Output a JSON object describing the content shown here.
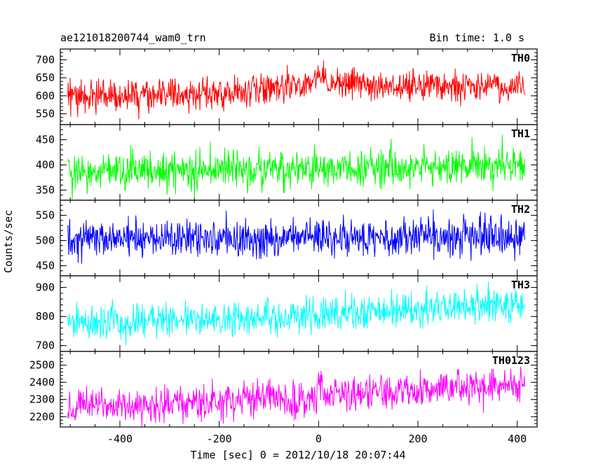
{
  "header": {
    "title": "ae121018200744_wam0_trn",
    "bin_time": "Bin time: 1.0 s"
  },
  "chart_data": {
    "type": "line",
    "title": "ae121018200744_wam0_trn",
    "subtitle": "Bin time: 1.0 s",
    "xlabel": "Time [sec] 0 = 2012/10/18 20:07:44",
    "ylabel": "Counts/sec",
    "xlim": [
      -520,
      440
    ],
    "x_range": [
      -505,
      415
    ],
    "x_step": 1,
    "xticks": [
      -400,
      -200,
      0,
      200,
      400
    ],
    "grid": false,
    "legend": "none",
    "panels": [
      {
        "name": "TH0",
        "color": "#ff0000",
        "ylim": [
          520,
          730
        ],
        "yticks": [
          550,
          600,
          650,
          700
        ],
        "trend": [
          [
            -505,
            600
          ],
          [
            -200,
            605
          ],
          [
            -5,
            640
          ],
          [
            0,
            665
          ],
          [
            20,
            630
          ],
          [
            415,
            625
          ]
        ],
        "noise": 22
      },
      {
        "name": "TH1",
        "color": "#00ff00",
        "ylim": [
          330,
          480
        ],
        "yticks": [
          350,
          400,
          450
        ],
        "trend": [
          [
            -505,
            388
          ],
          [
            0,
            392
          ],
          [
            415,
            400
          ]
        ],
        "noise": 19
      },
      {
        "name": "TH2",
        "color": "#0000ff",
        "ylim": [
          430,
          580
        ],
        "yticks": [
          450,
          500,
          550
        ],
        "trend": [
          [
            -505,
            505
          ],
          [
            0,
            505
          ],
          [
            300,
            510
          ],
          [
            415,
            505
          ]
        ],
        "noise": 19
      },
      {
        "name": "TH3",
        "color": "#00ffff",
        "ylim": [
          680,
          940
        ],
        "yticks": [
          700,
          800,
          900
        ],
        "trend": [
          [
            -505,
            775
          ],
          [
            0,
            805
          ],
          [
            415,
            845
          ]
        ],
        "noise": 30
      },
      {
        "name": "TH0123",
        "color": "#ff00ff",
        "ylim": [
          2140,
          2580
        ],
        "yticks": [
          2200,
          2300,
          2400,
          2500
        ],
        "trend": [
          [
            -505,
            2250
          ],
          [
            -5,
            2305
          ],
          [
            0,
            2370
          ],
          [
            20,
            2330
          ],
          [
            415,
            2390
          ]
        ],
        "noise": 50
      }
    ]
  }
}
